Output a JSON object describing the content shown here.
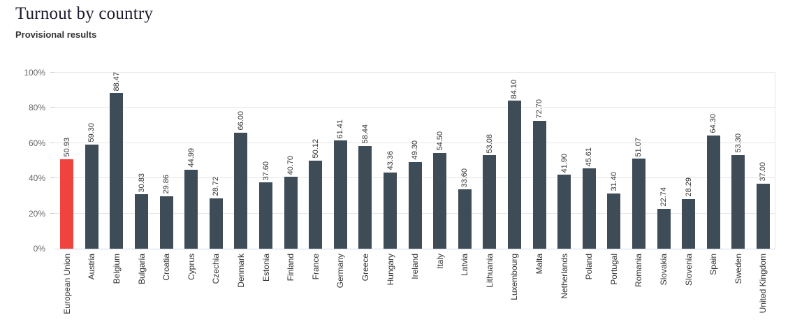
{
  "header": {
    "title": "Turnout by country",
    "subtitle": "Provisional results"
  },
  "chart_data": {
    "type": "bar",
    "title": "Turnout by country",
    "subtitle": "Provisional results",
    "xlabel": "",
    "ylabel": "",
    "ylim": [
      0,
      100
    ],
    "y_ticks": [
      "0%",
      "20%",
      "40%",
      "60%",
      "80%",
      "100%"
    ],
    "grid": "horizontal",
    "legend": "none",
    "categories": [
      "European Union",
      "Austria",
      "Belgium",
      "Bulgaria",
      "Croatia",
      "Cyprus",
      "Czechia",
      "Denmark",
      "Estonia",
      "Finland",
      "France",
      "Germany",
      "Greece",
      "Hungary",
      "Ireland",
      "Italy",
      "Latvia",
      "Lithuania",
      "Luxembourg",
      "Malta",
      "Netherlands",
      "Poland",
      "Portugal",
      "Romania",
      "Slovakia",
      "Slovenia",
      "Spain",
      "Sweden",
      "United Kingdom"
    ],
    "values": [
      50.93,
      59.3,
      88.47,
      30.83,
      29.86,
      44.99,
      28.72,
      66.0,
      37.6,
      40.7,
      50.12,
      61.41,
      58.44,
      43.36,
      49.3,
      54.5,
      33.6,
      53.08,
      84.1,
      72.7,
      41.9,
      45.61,
      31.4,
      51.07,
      22.74,
      28.29,
      64.3,
      53.3,
      37.0
    ],
    "value_labels": [
      "50.93",
      "59.30",
      "88.47",
      "30.83",
      "29.86",
      "44.99",
      "28.72",
      "66.00",
      "37.60",
      "40.70",
      "50.12",
      "61.41",
      "58.44",
      "43.36",
      "49.30",
      "54.50",
      "33.60",
      "53.08",
      "84.10",
      "72.70",
      "41.90",
      "45.61",
      "31.40",
      "51.07",
      "22.74",
      "28.29",
      "64.30",
      "53.30",
      "37.00"
    ],
    "highlight_index": 0,
    "colors": {
      "bar": "#3e4c58",
      "highlight": "#f0433d",
      "value_label": "#333333",
      "axis_label": "#666666",
      "gridline": "#e6e6e6",
      "axis_line": "#d3d8e8",
      "tick_mark": "#cccccc",
      "background": "#ffffff"
    }
  }
}
